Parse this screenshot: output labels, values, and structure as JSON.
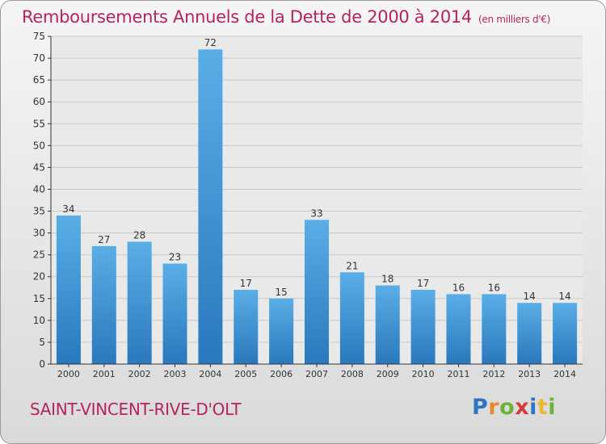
{
  "title": "Remboursements Annuels de la Dette de 2000 à 2014",
  "unit_note": "(en milliers d'€)",
  "commune": "SAINT-VINCENT-RIVE-D'OLT",
  "logo": {
    "letters": [
      "P",
      "r",
      "o",
      "x",
      "i",
      "t",
      "i"
    ],
    "colors": [
      "#2f74c0",
      "#e8892d",
      "#6fb23a",
      "#d43c3c",
      "#2f74c0",
      "#e8b82d",
      "#6fb23a"
    ]
  },
  "colors": {
    "bar": "#3d8fd6",
    "axis": "#333333",
    "grid": "#c8c8c8"
  },
  "chart_data": {
    "type": "bar",
    "categories": [
      "2000",
      "2001",
      "2002",
      "2003",
      "2004",
      "2005",
      "2006",
      "2007",
      "2008",
      "2009",
      "2010",
      "2011",
      "2012",
      "2013",
      "2014"
    ],
    "values": [
      34,
      27,
      28,
      23,
      72,
      17,
      15,
      33,
      21,
      18,
      17,
      16,
      16,
      14,
      14
    ],
    "data_labels": [
      "34",
      "27",
      "28",
      "23",
      "72",
      "17",
      "15",
      "33",
      "21",
      "18",
      "17",
      "16",
      "16",
      "14",
      "14"
    ],
    "y_ticks": [
      "0",
      "5",
      "10",
      "15",
      "20",
      "25",
      "30",
      "35",
      "40",
      "45",
      "50",
      "55",
      "60",
      "65",
      "70",
      "75"
    ],
    "ylim": [
      0,
      75
    ],
    "grid": true
  }
}
